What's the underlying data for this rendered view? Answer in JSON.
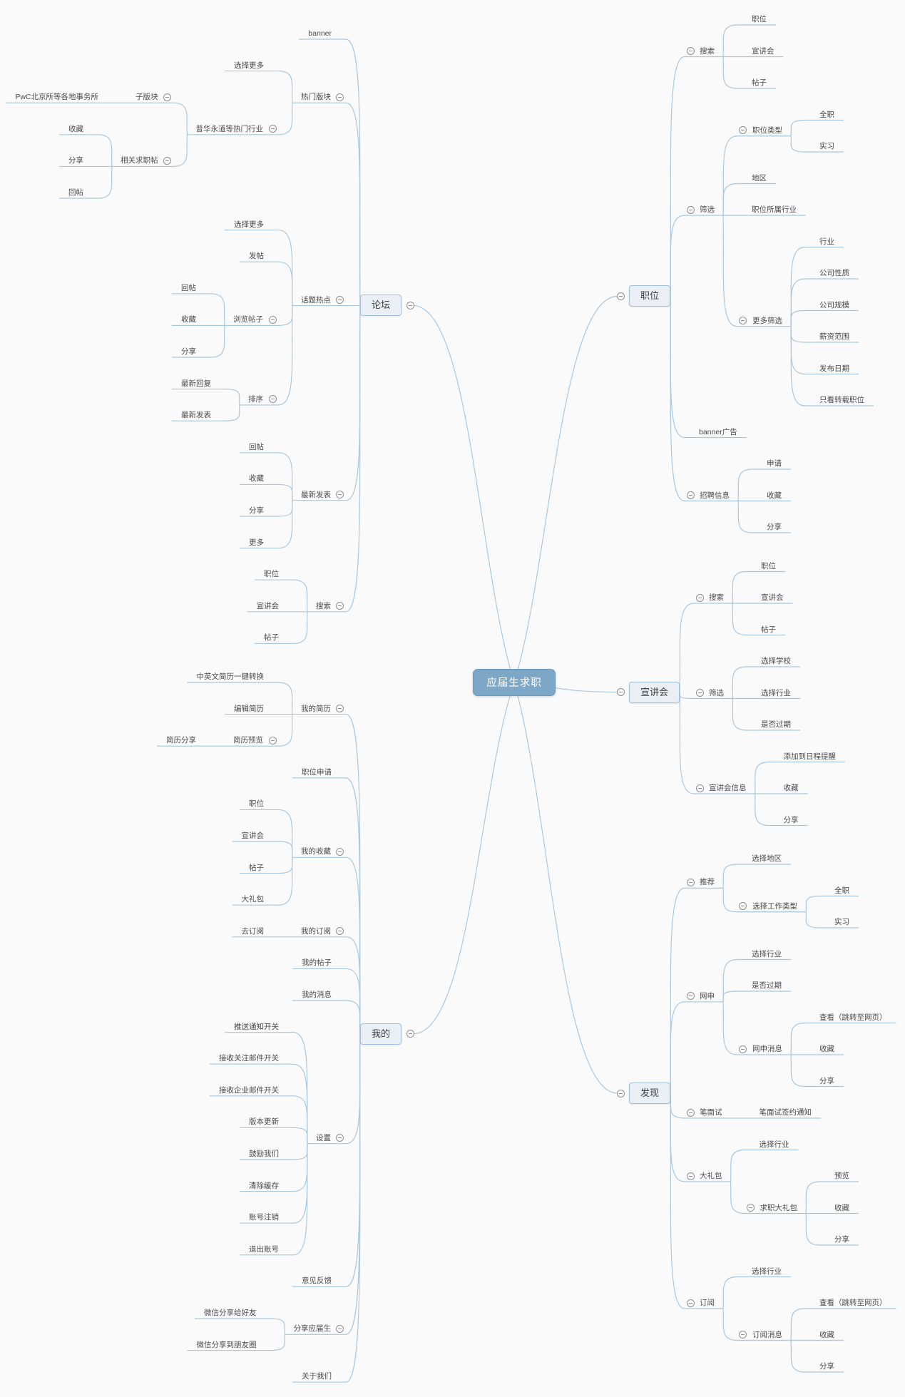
{
  "title": "应届生求职",
  "colors": {
    "background": "#fafafa",
    "line": "#a8c6dd",
    "root_fill": "#7da7c7",
    "root_text": "#ffffff",
    "branch_fill": "#e9eff5",
    "branch_border": "#a2c0d9",
    "text": "#4a4a4a"
  },
  "icons": {
    "collapse": "minus-circle-icon"
  },
  "tree": {
    "label": "应届生求职",
    "children": [
      {
        "label": "论坛",
        "side": "left",
        "children": [
          {
            "label": "banner"
          },
          {
            "label": "热门版块",
            "children": [
              {
                "label": "选择更多"
              },
              {
                "label": "普华永道等热门行业",
                "children": [
                  {
                    "label": "子版块",
                    "children": [
                      {
                        "label": "PwC北京所等各地事务所"
                      }
                    ]
                  },
                  {
                    "label": "相关求职帖",
                    "children": [
                      {
                        "label": "收藏"
                      },
                      {
                        "label": "分享"
                      },
                      {
                        "label": "回帖"
                      }
                    ]
                  }
                ]
              }
            ]
          },
          {
            "label": "话题热点",
            "children": [
              {
                "label": "选择更多"
              },
              {
                "label": "发帖"
              },
              {
                "label": "浏览帖子",
                "children": [
                  {
                    "label": "回帖"
                  },
                  {
                    "label": "收藏"
                  },
                  {
                    "label": "分享"
                  }
                ]
              },
              {
                "label": "排序",
                "children": [
                  {
                    "label": "最新回复"
                  },
                  {
                    "label": "最新发表"
                  }
                ]
              }
            ]
          },
          {
            "label": "最新发表",
            "children": [
              {
                "label": "回帖"
              },
              {
                "label": "收藏"
              },
              {
                "label": "分享"
              },
              {
                "label": "更多"
              }
            ]
          },
          {
            "label": "搜索",
            "children": [
              {
                "label": "职位"
              },
              {
                "label": "宣讲会"
              },
              {
                "label": "帖子"
              }
            ]
          }
        ]
      },
      {
        "label": "职位",
        "side": "right",
        "children": [
          {
            "label": "搜索",
            "children": [
              {
                "label": "职位"
              },
              {
                "label": "宣讲会"
              },
              {
                "label": "帖子"
              }
            ]
          },
          {
            "label": "筛选",
            "children": [
              {
                "label": "职位类型",
                "children": [
                  {
                    "label": "全职"
                  },
                  {
                    "label": "实习"
                  }
                ]
              },
              {
                "label": "地区"
              },
              {
                "label": "职位所属行业"
              },
              {
                "label": "更多筛选",
                "children": [
                  {
                    "label": "行业"
                  },
                  {
                    "label": "公司性质"
                  },
                  {
                    "label": "公司规模"
                  },
                  {
                    "label": "薪资范围"
                  },
                  {
                    "label": "发布日期"
                  },
                  {
                    "label": "只看转载职位"
                  }
                ]
              }
            ]
          },
          {
            "label": "banner广告"
          },
          {
            "label": "招聘信息",
            "children": [
              {
                "label": "申请"
              },
              {
                "label": "收藏"
              },
              {
                "label": "分享"
              }
            ]
          }
        ]
      },
      {
        "label": "宣讲会",
        "side": "right",
        "children": [
          {
            "label": "搜索",
            "children": [
              {
                "label": "职位"
              },
              {
                "label": "宣讲会"
              },
              {
                "label": "帖子"
              }
            ]
          },
          {
            "label": "筛选",
            "children": [
              {
                "label": "选择学校"
              },
              {
                "label": "选择行业"
              },
              {
                "label": "是否过期"
              }
            ]
          },
          {
            "label": "宣讲会信息",
            "children": [
              {
                "label": "添加到日程提醒"
              },
              {
                "label": "收藏"
              },
              {
                "label": "分享"
              }
            ]
          }
        ]
      },
      {
        "label": "我的",
        "side": "left",
        "children": [
          {
            "label": "我的简历",
            "children": [
              {
                "label": "中英文简历一键转换"
              },
              {
                "label": "编辑简历"
              },
              {
                "label": "简历预览",
                "children": [
                  {
                    "label": "简历分享"
                  }
                ]
              }
            ]
          },
          {
            "label": "职位申请"
          },
          {
            "label": "我的收藏",
            "children": [
              {
                "label": "职位"
              },
              {
                "label": "宣讲会"
              },
              {
                "label": "帖子"
              },
              {
                "label": "大礼包"
              }
            ]
          },
          {
            "label": "我的订阅",
            "children": [
              {
                "label": "去订阅"
              }
            ]
          },
          {
            "label": "我的帖子"
          },
          {
            "label": "我的消息"
          },
          {
            "label": "设置",
            "children": [
              {
                "label": "推送通知开关"
              },
              {
                "label": "接收关注邮件开关"
              },
              {
                "label": "接收企业邮件开关"
              },
              {
                "label": "版本更新"
              },
              {
                "label": "鼓励我们"
              },
              {
                "label": "清除缓存"
              },
              {
                "label": "账号注销"
              },
              {
                "label": "退出账号"
              }
            ]
          },
          {
            "label": "意见反馈"
          },
          {
            "label": "分享应届生",
            "children": [
              {
                "label": "微信分享给好友"
              },
              {
                "label": "微信分享到朋友圈"
              }
            ]
          },
          {
            "label": "关于我们"
          }
        ]
      },
      {
        "label": "发现",
        "side": "right",
        "children": [
          {
            "label": "推荐",
            "children": [
              {
                "label": "选择地区"
              },
              {
                "label": "选择工作类型",
                "children": [
                  {
                    "label": "全职"
                  },
                  {
                    "label": "实习"
                  }
                ]
              }
            ]
          },
          {
            "label": "网申",
            "children": [
              {
                "label": "选择行业"
              },
              {
                "label": "是否过期"
              },
              {
                "label": "网申消息",
                "children": [
                  {
                    "label": "查看（跳转至网页）"
                  },
                  {
                    "label": "收藏"
                  },
                  {
                    "label": "分享"
                  }
                ]
              }
            ]
          },
          {
            "label": "笔面试",
            "children": [
              {
                "label": "笔面试签约通知"
              }
            ]
          },
          {
            "label": "大礼包",
            "children": [
              {
                "label": "选择行业"
              },
              {
                "label": "求职大礼包",
                "children": [
                  {
                    "label": "预览"
                  },
                  {
                    "label": "收藏"
                  },
                  {
                    "label": "分享"
                  }
                ]
              }
            ]
          },
          {
            "label": "订阅",
            "children": [
              {
                "label": "选择行业"
              },
              {
                "label": "订阅消息",
                "children": [
                  {
                    "label": "查看（跳转至网页）"
                  },
                  {
                    "label": "收藏"
                  },
                  {
                    "label": "分享"
                  }
                ]
              }
            ]
          }
        ]
      }
    ]
  }
}
